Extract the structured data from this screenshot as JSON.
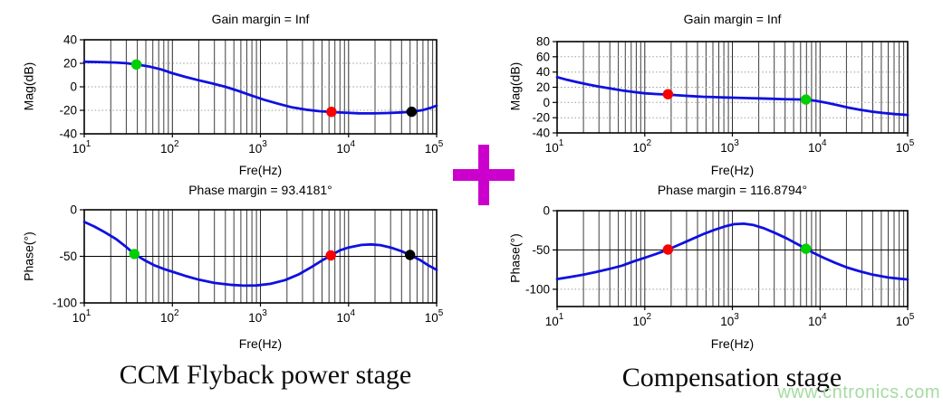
{
  "captions": {
    "left": "CCM Flyback power stage",
    "right": "Compensation stage"
  },
  "watermark": {
    "text": "www.cntronics.com",
    "color": "#a5dba0"
  },
  "plus_sign": {
    "symbol": "+",
    "color": "#cc00cc"
  },
  "chart_data": [
    {
      "id": "power-stage-magnitude",
      "type": "line",
      "title": "Gain margin = Inf",
      "xlabel": "Fre(Hz)",
      "ylabel": "Mag(dB)",
      "xscale": "log",
      "xlim": [
        10,
        100000
      ],
      "xticks_exp": [
        1,
        2,
        3,
        4,
        5
      ],
      "ylim": [
        -40,
        40
      ],
      "yticks": [
        40,
        20,
        0,
        -20,
        -40
      ],
      "grid": true,
      "legend": "none",
      "ref_lines_y": [],
      "series": [
        {
          "name": "magnitude",
          "color": "#1010e0",
          "x": [
            10,
            15,
            22,
            30,
            39,
            55,
            75,
            100,
            140,
            200,
            280,
            400,
            560,
            800,
            1100,
            1600,
            2300,
            3300,
            4700,
            6400,
            9000,
            13000,
            19000,
            28000,
            40000,
            52000,
            70000,
            85000,
            100000
          ],
          "y": [
            21.3,
            21.1,
            20.7,
            20.1,
            19.0,
            17.2,
            14.8,
            11.5,
            8.5,
            5.5,
            3.0,
            0.0,
            -3.5,
            -7.5,
            -11.0,
            -14.5,
            -17.5,
            -19.5,
            -20.8,
            -21.4,
            -22.0,
            -22.5,
            -22.6,
            -22.3,
            -21.8,
            -21.2,
            -19.8,
            -18.0,
            -16.0
          ]
        }
      ],
      "markers": [
        {
          "name": "green",
          "color": "#00cf00",
          "x": 39,
          "y": 19.0
        },
        {
          "name": "red",
          "color": "#fa0000",
          "x": 6400,
          "y": -21.3
        },
        {
          "name": "black",
          "color": "#000000",
          "x": 52000,
          "y": -21.2
        }
      ]
    },
    {
      "id": "power-stage-phase",
      "type": "line",
      "title": "Phase margin = 93.4181°",
      "xlabel": "Fre(Hz)",
      "ylabel": "Phase(°)",
      "xscale": "log",
      "xlim": [
        10,
        100000
      ],
      "xticks_exp": [
        1,
        2,
        3,
        4,
        5
      ],
      "ylim": [
        -100,
        0
      ],
      "yticks": [
        0,
        -50,
        -100
      ],
      "grid": true,
      "legend": "none",
      "ref_lines_y": [
        -50
      ],
      "series": [
        {
          "name": "phase",
          "color": "#1010e0",
          "x": [
            10,
            13,
            17,
            23,
            30,
            37,
            48,
            62,
            80,
            100,
            140,
            200,
            300,
            450,
            650,
            900,
            1300,
            1900,
            2700,
            3800,
            5000,
            6300,
            8000,
            10000,
            14000,
            18000,
            23000,
            30000,
            40000,
            50000,
            65000,
            80000,
            100000
          ],
          "y": [
            -13,
            -18,
            -24,
            -31.5,
            -40,
            -47.5,
            -54,
            -59.5,
            -63.5,
            -66.5,
            -71,
            -75,
            -78.5,
            -80.5,
            -81.5,
            -81.3,
            -79.5,
            -75.5,
            -69.5,
            -61.5,
            -54.5,
            -49,
            -43.5,
            -40.5,
            -37.8,
            -37.2,
            -38,
            -40.5,
            -44.5,
            -48.5,
            -54,
            -59.5,
            -64.5
          ]
        }
      ],
      "markers": [
        {
          "name": "green",
          "color": "#00cf00",
          "x": 37,
          "y": -47.5
        },
        {
          "name": "red",
          "color": "#fa0000",
          "x": 6300,
          "y": -49
        },
        {
          "name": "black",
          "color": "#000000",
          "x": 50000,
          "y": -48.5
        }
      ]
    },
    {
      "id": "compensation-magnitude",
      "type": "line",
      "title": "Gain margin = Inf",
      "xlabel": "Fre(Hz)",
      "ylabel": "Mag(dB)",
      "xscale": "log",
      "xlim": [
        10,
        100000
      ],
      "xticks_exp": [
        1,
        2,
        3,
        4,
        5
      ],
      "ylim": [
        -40,
        80
      ],
      "yticks": [
        80,
        60,
        40,
        20,
        0,
        -20,
        -40
      ],
      "grid": true,
      "legend": "none",
      "ref_lines_y": [],
      "series": [
        {
          "name": "magnitude",
          "color": "#1010e0",
          "x": [
            10,
            13,
            17,
            23,
            30,
            40,
            55,
            75,
            100,
            135,
            184,
            250,
            340,
            460,
            620,
            820,
            1100,
            1500,
            2000,
            2700,
            3700,
            5000,
            6900,
            9000,
            12000,
            16000,
            21000,
            28000,
            38000,
            52000,
            72000,
            100000
          ],
          "y": [
            33.3,
            29.8,
            26.6,
            23.4,
            20.9,
            18.4,
            15.9,
            13.7,
            12.0,
            11.1,
            10.4,
            9.3,
            8.3,
            7.5,
            7.0,
            6.6,
            6.2,
            5.8,
            5.4,
            4.9,
            4.4,
            4.1,
            3.8,
            2.2,
            -0.5,
            -3.6,
            -6.7,
            -9.3,
            -11.8,
            -13.8,
            -15.3,
            -16.3
          ]
        }
      ],
      "markers": [
        {
          "name": "red",
          "color": "#fa0000",
          "x": 184,
          "y": 10.8
        },
        {
          "name": "green",
          "color": "#00cf00",
          "x": 6900,
          "y": 3.9
        }
      ]
    },
    {
      "id": "compensation-phase",
      "type": "line",
      "title": "Phase margin = 116.8794°",
      "xlabel": "Fre(Hz)",
      "ylabel": "Phase(°)",
      "xscale": "log",
      "xlim": [
        10,
        100000
      ],
      "xticks_exp": [
        1,
        2,
        3,
        4,
        5
      ],
      "ylim": [
        -122,
        0
      ],
      "yticks": [
        0,
        -50,
        -100
      ],
      "grid": true,
      "legend": "none",
      "ref_lines_y": [
        -50
      ],
      "series": [
        {
          "name": "phase",
          "color": "#1010e0",
          "x": [
            10,
            14,
            20,
            28,
            40,
            55,
            75,
            100,
            135,
            184,
            250,
            340,
            460,
            620,
            820,
            1050,
            1350,
            1750,
            2300,
            3100,
            4200,
            5500,
            6900,
            8500,
            11000,
            15000,
            20000,
            28000,
            40000,
            60000,
            80000,
            100000
          ],
          "y": [
            -87,
            -84.5,
            -81.5,
            -78,
            -74,
            -70,
            -64.5,
            -60,
            -55,
            -49.5,
            -43,
            -36.5,
            -30,
            -24.5,
            -20,
            -17.2,
            -16.6,
            -18.3,
            -22.5,
            -28.5,
            -35.5,
            -42.5,
            -48.5,
            -54,
            -60,
            -66.5,
            -72,
            -77,
            -81.5,
            -85,
            -86.5,
            -87.5
          ]
        }
      ],
      "markers": [
        {
          "name": "red",
          "color": "#fa0000",
          "x": 184,
          "y": -49.5
        },
        {
          "name": "green",
          "color": "#00cf00",
          "x": 6900,
          "y": -48.5
        }
      ]
    }
  ]
}
